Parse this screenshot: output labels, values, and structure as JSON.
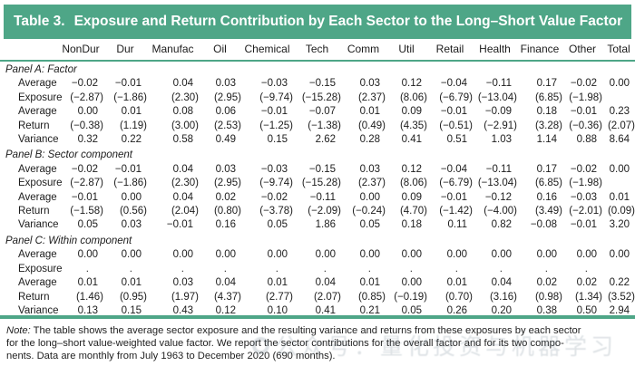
{
  "colors": {
    "accent": "#4EA687"
  },
  "title": {
    "prefix": "Table 3.",
    "text": "Exposure and Return Contribution by Each Sector to the Long–Short Value Factor"
  },
  "columns": [
    "NonDur",
    "Dur",
    "Manufac",
    "Oil",
    "Chemical",
    "Tech",
    "Comm",
    "Util",
    "Retail",
    "Health",
    "Finance",
    "Other",
    "Total"
  ],
  "panels": [
    {
      "label": "Panel A: Factor",
      "rows": [
        {
          "label": "Average",
          "values": [
            "−0.02",
            "−0.01",
            "0.04",
            "0.03",
            "−0.03",
            "−0.15",
            "0.03",
            "0.12",
            "−0.04",
            "−0.11",
            "0.17",
            "−0.02",
            "0.00"
          ]
        },
        {
          "label": "Exposure",
          "values": [
            "(−2.87)",
            "(−1.86)",
            "(2.30)",
            "(2.95)",
            "(−9.74)",
            "(−15.28)",
            "(2.37)",
            "(8.06)",
            "(−6.79)",
            "(−13.04)",
            "(6.85)",
            "(−1.98)",
            ""
          ]
        },
        {
          "label": "Average",
          "values": [
            "0.00",
            "0.01",
            "0.08",
            "0.06",
            "−0.01",
            "−0.07",
            "0.01",
            "0.09",
            "−0.01",
            "−0.09",
            "0.18",
            "−0.01",
            "0.23"
          ]
        },
        {
          "label": "Return",
          "values": [
            "(−0.38)",
            "(1.19)",
            "(3.00)",
            "(2.53)",
            "(−1.25)",
            "(−1.38)",
            "(0.49)",
            "(4.35)",
            "(−0.51)",
            "(−2.91)",
            "(3.28)",
            "(−0.36)",
            "(2.07)"
          ]
        },
        {
          "label": "Variance",
          "values": [
            "0.32",
            "0.22",
            "0.58",
            "0.49",
            "0.15",
            "2.62",
            "0.28",
            "0.41",
            "0.51",
            "1.03",
            "1.14",
            "0.88",
            "8.64"
          ]
        }
      ]
    },
    {
      "label": "Panel B: Sector component",
      "rows": [
        {
          "label": "Average",
          "values": [
            "−0.02",
            "−0.01",
            "0.04",
            "0.03",
            "−0.03",
            "−0.15",
            "0.03",
            "0.12",
            "−0.04",
            "−0.11",
            "0.17",
            "−0.02",
            "0.00"
          ]
        },
        {
          "label": "Exposure",
          "values": [
            "(−2.87)",
            "(−1.86)",
            "(2.30)",
            "(2.95)",
            "(−9.74)",
            "(−15.28)",
            "(2.37)",
            "(8.06)",
            "(−6.79)",
            "(−13.04)",
            "(6.85)",
            "(−1.98)",
            ""
          ]
        },
        {
          "label": "Average",
          "values": [
            "−0.01",
            "0.00",
            "0.04",
            "0.02",
            "−0.02",
            "−0.11",
            "0.00",
            "0.09",
            "−0.01",
            "−0.12",
            "0.16",
            "−0.03",
            "0.01"
          ]
        },
        {
          "label": "Return",
          "values": [
            "(−1.58)",
            "(0.56)",
            "(2.04)",
            "(0.80)",
            "(−3.78)",
            "(−2.09)",
            "(−0.24)",
            "(4.70)",
            "(−1.42)",
            "(−4.00)",
            "(3.49)",
            "(−2.01)",
            "(0.09)"
          ]
        },
        {
          "label": "Variance",
          "values": [
            "0.05",
            "0.03",
            "−0.01",
            "0.16",
            "0.05",
            "1.86",
            "0.05",
            "0.18",
            "0.11",
            "0.82",
            "−0.08",
            "−0.01",
            "3.20"
          ]
        }
      ]
    },
    {
      "label": "Panel C: Within component",
      "rows": [
        {
          "label": "Average",
          "values": [
            "0.00",
            "0.00",
            "0.00",
            "0.00",
            "0.00",
            "0.00",
            "0.00",
            "0.00",
            "0.00",
            "0.00",
            "0.00",
            "0.00",
            "0.00"
          ]
        },
        {
          "label": "Exposure",
          "values": [
            ".",
            ".",
            ".",
            ".",
            ".",
            ".",
            ".",
            ".",
            ".",
            ".",
            ".",
            ".",
            ""
          ]
        },
        {
          "label": "Average",
          "values": [
            "0.01",
            "0.01",
            "0.03",
            "0.04",
            "0.01",
            "0.04",
            "0.01",
            "0.00",
            "0.01",
            "0.04",
            "0.02",
            "0.02",
            "0.22"
          ]
        },
        {
          "label": "Return",
          "values": [
            "(1.46)",
            "(0.95)",
            "(1.97)",
            "(4.37)",
            "(2.77)",
            "(2.07)",
            "(0.85)",
            "(−0.19)",
            "(0.70)",
            "(3.16)",
            "(0.98)",
            "(1.34)",
            "(3.52)"
          ]
        },
        {
          "label": "Variance",
          "values": [
            "0.13",
            "0.15",
            "0.43",
            "0.12",
            "0.10",
            "0.41",
            "0.21",
            "0.05",
            "0.26",
            "0.20",
            "0.38",
            "0.50",
            "2.94"
          ]
        }
      ]
    }
  ],
  "note": {
    "label": "Note:",
    "lines": [
      "The table shows the average sector exposure and the resulting variance and returns from these exposures by each sector",
      "for the long–short value-weighted value factor. We report the sector contributions for the overall factor and for its two compo-",
      "nents. Data are monthly from July 1963 to December 2020 (690 months)."
    ]
  },
  "watermark": {
    "text": "公众号：量化投资与机器学习"
  }
}
